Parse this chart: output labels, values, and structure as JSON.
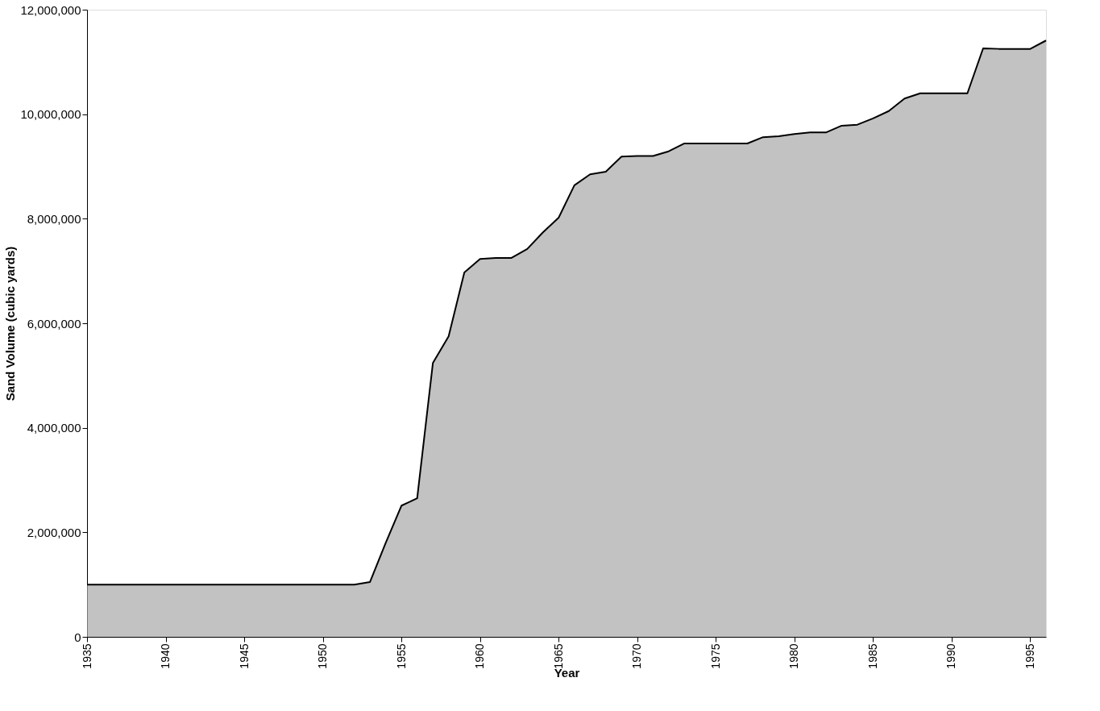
{
  "chart_data": {
    "type": "area",
    "xlabel": "Year",
    "ylabel": "Sand Volume (cubic yards)",
    "x": [
      1935,
      1936,
      1937,
      1938,
      1939,
      1940,
      1941,
      1942,
      1943,
      1944,
      1945,
      1946,
      1947,
      1948,
      1949,
      1950,
      1951,
      1952,
      1953,
      1954,
      1955,
      1956,
      1957,
      1958,
      1959,
      1960,
      1961,
      1962,
      1963,
      1964,
      1965,
      1966,
      1967,
      1968,
      1969,
      1970,
      1971,
      1972,
      1973,
      1974,
      1975,
      1976,
      1977,
      1978,
      1979,
      1980,
      1981,
      1982,
      1983,
      1984,
      1985,
      1986,
      1987,
      1988,
      1989,
      1990,
      1991,
      1992,
      1993,
      1994,
      1995,
      1996
    ],
    "series": [
      {
        "color": "#a8a8a8",
        "values": [
          1000000,
          1000000,
          1000000,
          1000000,
          1000000,
          1000000,
          1000000,
          1000000,
          1000000,
          1000000,
          1000000,
          1000000,
          1000000,
          1000000,
          1000000,
          1000000,
          1000000,
          1000000,
          1050000,
          1800000,
          2510000,
          2650000,
          5240000,
          5750000,
          6970000,
          7230000,
          7250000,
          7250000,
          7420000,
          7740000,
          8020000,
          8640000,
          8850000,
          8900000,
          9190000,
          9200000,
          9200000,
          9290000,
          9440000,
          9440000,
          9440000,
          9440000,
          9440000,
          9560000,
          9580000,
          9620000,
          9650000,
          9650000,
          9780000,
          9800000,
          9920000,
          10060000,
          10300000,
          10400000,
          10400000,
          10400000,
          10400000,
          11260000,
          11250000,
          11250000,
          11250000,
          11410000
        ]
      }
    ],
    "xlim": [
      1935,
      1996
    ],
    "xticks": [
      1935,
      1940,
      1945,
      1950,
      1955,
      1960,
      1965,
      1970,
      1975,
      1980,
      1985,
      1990,
      1995
    ],
    "ylim": [
      0,
      12000000
    ],
    "yticks": [
      {
        "value": 0,
        "label": "0"
      },
      {
        "value": 2000000,
        "label": "2,000,000"
      },
      {
        "value": 4000000,
        "label": "4,000,000"
      },
      {
        "value": 6000000,
        "label": "6,000,000"
      },
      {
        "value": 8000000,
        "label": "8,000,000"
      },
      {
        "value": 10000000,
        "label": "10,000,000"
      },
      {
        "value": 12000000,
        "label": "12,000,000"
      }
    ],
    "grid": false
  }
}
